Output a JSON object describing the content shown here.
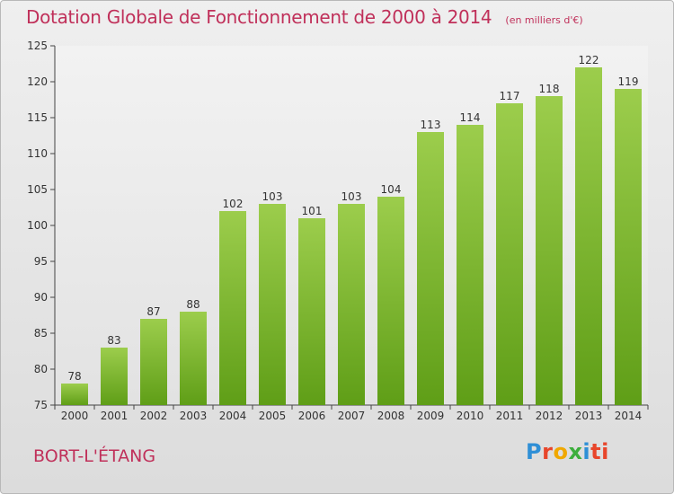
{
  "header": {
    "title": "Dotation Globale de Fonctionnement de 2000 à 2014",
    "subtitle": "(en milliers d'€)"
  },
  "place_name": "BORT-L'ÉTANG",
  "logo": {
    "letters": [
      "P",
      "r",
      "o",
      "x",
      "i",
      "ti"
    ]
  },
  "colors": {
    "title": "#c0305a",
    "bar_light": "#9ccd4c",
    "bar_dark": "#5f9e17",
    "background": "#e4e4e4"
  },
  "chart_data": {
    "type": "bar",
    "categories": [
      "2000",
      "2001",
      "2002",
      "2003",
      "2004",
      "2005",
      "2006",
      "2007",
      "2008",
      "2009",
      "2010",
      "2011",
      "2012",
      "2013",
      "2014"
    ],
    "values": [
      78,
      83,
      87,
      88,
      102,
      103,
      101,
      103,
      104,
      113,
      114,
      117,
      118,
      122,
      119
    ],
    "title": "Dotation Globale de Fonctionnement de 2000 à 2014",
    "subtitle": "(en milliers d'€)",
    "xlabel": "",
    "ylabel": "",
    "ylim": [
      75,
      125
    ],
    "yticks": [
      75,
      80,
      85,
      90,
      95,
      100,
      105,
      110,
      115,
      120,
      125
    ],
    "grid": false,
    "legend": "none"
  }
}
